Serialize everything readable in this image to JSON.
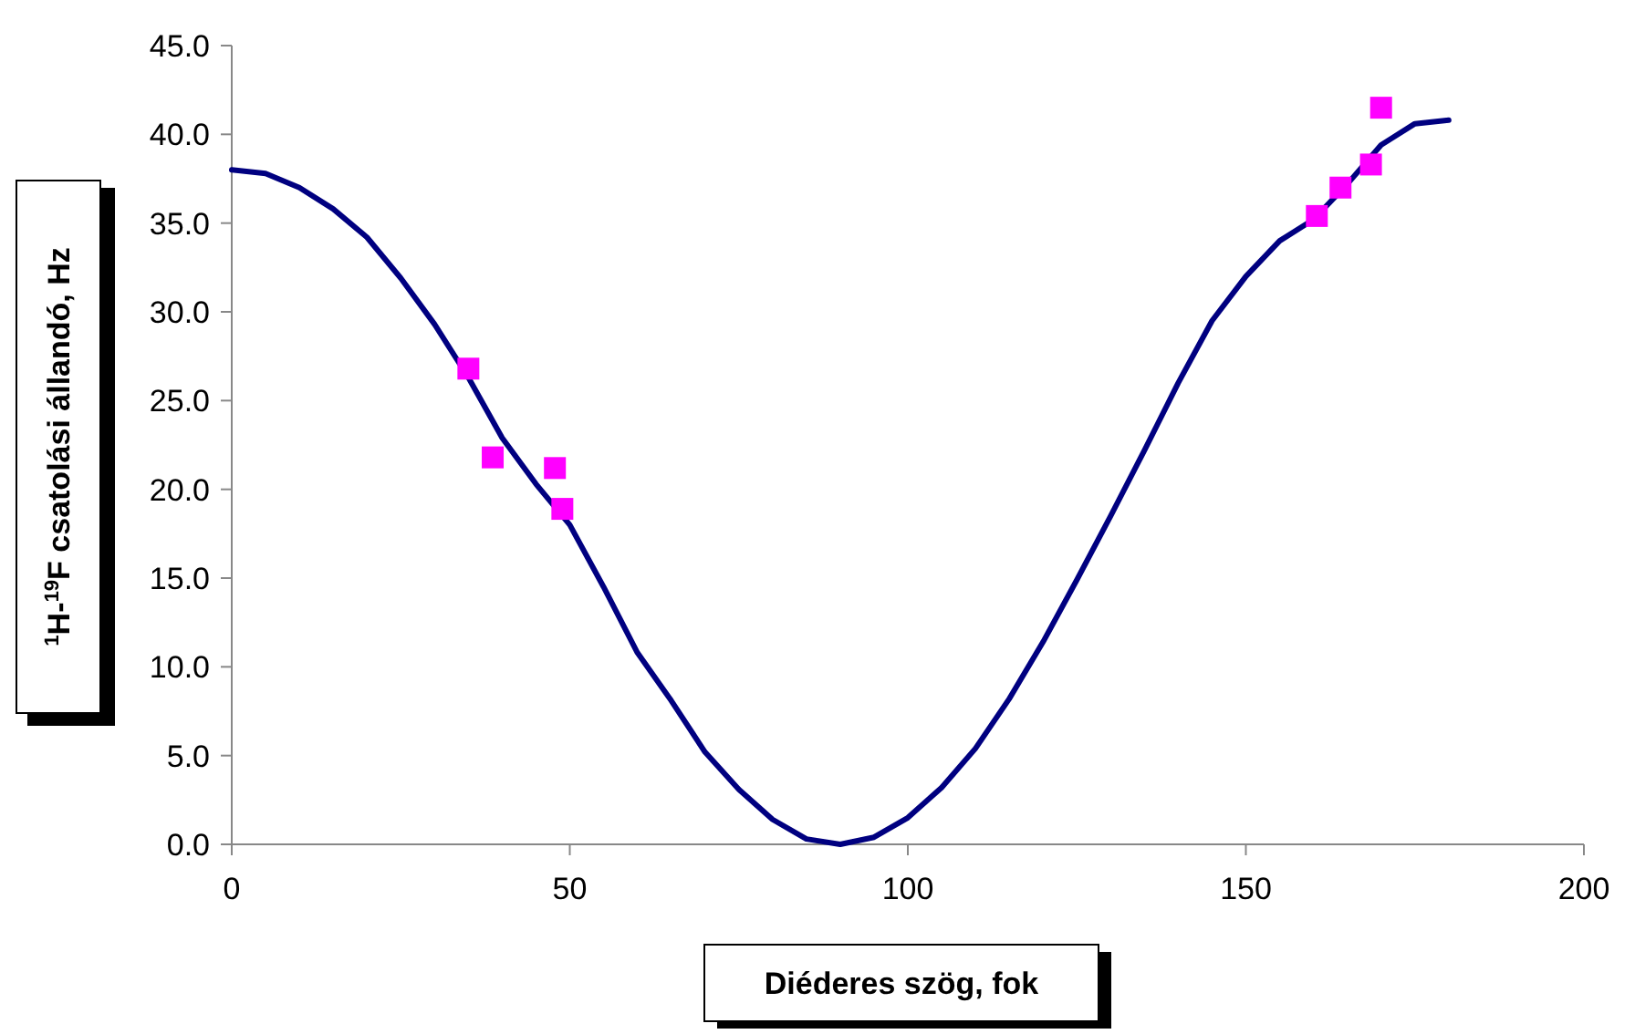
{
  "chart_data": {
    "type": "line",
    "xlabel": "Diéderes szög, fok",
    "ylabel": "$^{1}$H-$^{19}$F csatolási állandó, Hz",
    "xlim": [
      0,
      200
    ],
    "xticks": [
      0,
      50,
      100,
      150,
      200
    ],
    "ylim": [
      0,
      45
    ],
    "yticks": [
      {
        "value": 0,
        "label": "0.0"
      },
      {
        "value": 5,
        "label": "5.0"
      },
      {
        "value": 10,
        "label": "10.0"
      },
      {
        "value": 15,
        "label": "15.0"
      },
      {
        "value": 20,
        "label": "20.0"
      },
      {
        "value": 25,
        "label": "25.0"
      },
      {
        "value": 30,
        "label": "30.0"
      },
      {
        "value": 35,
        "label": "35.0"
      },
      {
        "value": 40,
        "label": "40.0"
      },
      {
        "value": 45,
        "label": "45.0"
      }
    ],
    "grid": false,
    "series": [
      {
        "color": "#000080",
        "marker": "none",
        "x": [
          0,
          5,
          10,
          15,
          20,
          25,
          30,
          35,
          40,
          45,
          50,
          55,
          60,
          65,
          70,
          75,
          80,
          85,
          90,
          95,
          100,
          105,
          110,
          115,
          120,
          125,
          130,
          135,
          140,
          145,
          150,
          155,
          160,
          165,
          170,
          175,
          180
        ],
        "values": [
          38,
          37.8,
          37,
          35.8,
          34.2,
          31.9,
          29.3,
          26.3,
          22.9,
          20.3,
          18,
          14.5,
          10.8,
          8.1,
          5.2,
          3.1,
          1.4,
          0.3,
          0,
          0.4,
          1.5,
          3.2,
          5.4,
          8.2,
          11.4,
          14.9,
          18.5,
          22.2,
          26,
          29.5,
          32,
          34,
          35.2,
          37.2,
          39.4,
          40.6,
          40.8
        ]
      },
      {
        "type": "scatter",
        "color": "#ff00ff",
        "marker": "square",
        "x": [
          35,
          38.6,
          47.8,
          48.9,
          160.5,
          164,
          168.5,
          170
        ],
        "values": [
          26.8,
          21.8,
          21.2,
          18.9,
          35.4,
          37,
          38.3,
          41.5
        ]
      }
    ]
  }
}
